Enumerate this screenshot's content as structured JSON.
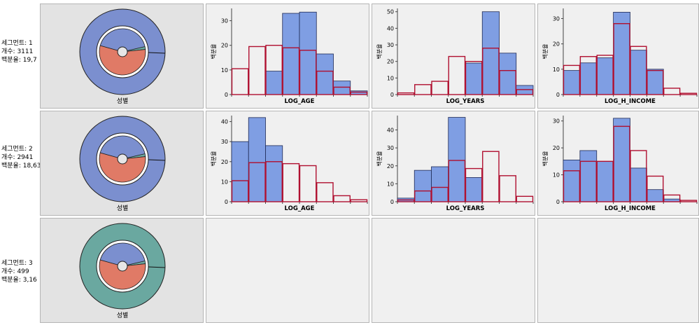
{
  "colors": {
    "blue": "#7f9ee3",
    "blueStroke": "#1f2a55",
    "redStroke": "#b01030",
    "redFill": "#f2f2f2",
    "pieBlue": "#7b8fcf",
    "pieTeal": "#6aa8a0",
    "pieRed": "#e07a66"
  },
  "rows": [
    {
      "label": {
        "segment": "세그먼트: 1",
        "count": "개수: 3111",
        "percent": "백분율: 19,7"
      },
      "pie": {
        "outer": "blue",
        "inner": [
          {
            "color": "pieRed",
            "value": 0.56
          },
          {
            "color": "pieBlue",
            "value": 0.42
          },
          {
            "color": "pieTeal",
            "value": 0.02
          }
        ],
        "caption": "성별"
      }
    },
    {
      "label": {
        "segment": "세그먼트: 2",
        "count": "개수: 2941",
        "percent": "백분율: 18,63"
      },
      "pie": {
        "outer": "blue",
        "inner": [
          {
            "color": "pieRed",
            "value": 0.56
          },
          {
            "color": "pieBlue",
            "value": 0.42
          },
          {
            "color": "pieTeal",
            "value": 0.02
          }
        ],
        "caption": "성별"
      }
    },
    {
      "label": {
        "segment": "세그먼트: 3",
        "count": "개수: 499",
        "percent": "백분율: 3,16"
      },
      "pie": {
        "outer": "teal",
        "inner": [
          {
            "color": "pieRed",
            "value": 0.56
          },
          {
            "color": "pieBlue",
            "value": 0.42
          },
          {
            "color": "pieTeal",
            "value": 0.02
          }
        ],
        "caption": "성별"
      }
    }
  ],
  "chart_data": [
    {
      "type": "bar",
      "row": 1,
      "xlabel": "LOG_AGE",
      "ylabel": "백분율",
      "ylim": [
        0,
        35
      ],
      "yticks": [
        0,
        10,
        20,
        30
      ],
      "series": [
        {
          "values": [
            0,
            0,
            9.5,
            33,
            33.5,
            16.5,
            5.5,
            1.5
          ]
        },
        {
          "values": [
            10.5,
            19.5,
            20,
            19,
            18,
            9.5,
            3,
            1
          ]
        }
      ]
    },
    {
      "type": "bar",
      "row": 1,
      "xlabel": "LOG_YEARS",
      "ylabel": "백분율",
      "ylim": [
        0,
        52
      ],
      "yticks": [
        0,
        10,
        20,
        30,
        40,
        50
      ],
      "series": [
        {
          "values": [
            0,
            0,
            0,
            0,
            19,
            50,
            25,
            5.5
          ]
        },
        {
          "values": [
            1,
            6,
            8,
            23,
            20,
            28,
            14.5,
            3
          ]
        }
      ]
    },
    {
      "type": "bar",
      "row": 1,
      "xlabel": "LOG_H_INCOME",
      "ylabel": "백분율",
      "ylim": [
        0,
        34
      ],
      "yticks": [
        0,
        10,
        20,
        30
      ],
      "series": [
        {
          "values": [
            9.5,
            12.5,
            14.5,
            32.5,
            17.5,
            10,
            0,
            0
          ]
        },
        {
          "values": [
            11.5,
            15,
            15.5,
            28,
            19,
            9.5,
            2.5,
            0.5
          ]
        }
      ]
    },
    {
      "type": "bar",
      "row": 2,
      "xlabel": "LOG_AGE",
      "ylabel": "백분율",
      "ylim": [
        0,
        43
      ],
      "yticks": [
        0,
        10,
        20,
        30,
        40
      ],
      "series": [
        {
          "values": [
            30,
            42,
            28,
            0,
            0,
            0,
            0,
            0
          ]
        },
        {
          "values": [
            10.5,
            19.5,
            20,
            19,
            18,
            9.5,
            3,
            1
          ]
        }
      ]
    },
    {
      "type": "bar",
      "row": 2,
      "xlabel": "LOG_YEARS",
      "ylabel": "백분율",
      "ylim": [
        0,
        48
      ],
      "yticks": [
        0,
        10,
        20,
        30,
        40
      ],
      "series": [
        {
          "values": [
            2,
            17.5,
            19.5,
            47,
            13.5,
            0,
            0,
            0
          ]
        },
        {
          "values": [
            1,
            6,
            8,
            23,
            18.5,
            28,
            14.5,
            3
          ]
        }
      ]
    },
    {
      "type": "bar",
      "row": 2,
      "xlabel": "LOG_H_INCOME",
      "ylabel": "백분율",
      "ylim": [
        0,
        32
      ],
      "yticks": [
        0,
        10,
        20,
        30
      ],
      "series": [
        {
          "values": [
            15.5,
            19,
            15,
            31,
            12.5,
            4.5,
            1,
            0
          ]
        },
        {
          "values": [
            11.5,
            15,
            15,
            28,
            19,
            9.5,
            2.5,
            0.5
          ]
        }
      ]
    }
  ]
}
